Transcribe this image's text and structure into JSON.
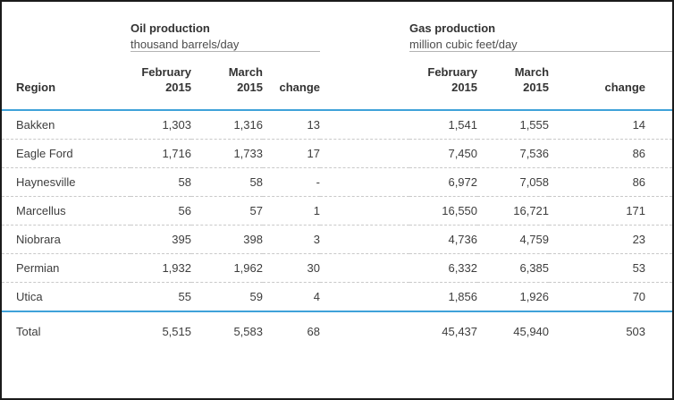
{
  "colors": {
    "accent_blue": "#3fa2d9",
    "frame_border": "#1a1a1a",
    "dashed_divider": "#c9c9c9",
    "group_underline": "#b3b3b3",
    "text": "#3d3d3d"
  },
  "chart_data": {
    "type": "table",
    "region_column_header": "Region",
    "column_groups": [
      {
        "title": "Oil production",
        "subtitle": "thousand barrels/day"
      },
      {
        "title": "Gas production",
        "subtitle": "million cubic feet/day"
      }
    ],
    "col_headers": [
      "February\n2015",
      "March\n2015",
      "change"
    ],
    "rows": [
      {
        "region": "Bakken",
        "oil": [
          "1,303",
          "1,316",
          "13"
        ],
        "gas": [
          "1,541",
          "1,555",
          "14"
        ]
      },
      {
        "region": "Eagle Ford",
        "oil": [
          "1,716",
          "1,733",
          "17"
        ],
        "gas": [
          "7,450",
          "7,536",
          "86"
        ]
      },
      {
        "region": "Haynesville",
        "oil": [
          "58",
          "58",
          "-"
        ],
        "gas": [
          "6,972",
          "7,058",
          "86"
        ]
      },
      {
        "region": "Marcellus",
        "oil": [
          "56",
          "57",
          "1"
        ],
        "gas": [
          "16,550",
          "16,721",
          "171"
        ]
      },
      {
        "region": "Niobrara",
        "oil": [
          "395",
          "398",
          "3"
        ],
        "gas": [
          "4,736",
          "4,759",
          "23"
        ]
      },
      {
        "region": "Permian",
        "oil": [
          "1,932",
          "1,962",
          "30"
        ],
        "gas": [
          "6,332",
          "6,385",
          "53"
        ]
      },
      {
        "region": "Utica",
        "oil": [
          "55",
          "59",
          "4"
        ],
        "gas": [
          "1,856",
          "1,926",
          "70"
        ]
      }
    ],
    "total_row": {
      "region": "Total",
      "oil": [
        "5,515",
        "5,583",
        "68"
      ],
      "gas": [
        "45,437",
        "45,940",
        "503"
      ]
    }
  }
}
